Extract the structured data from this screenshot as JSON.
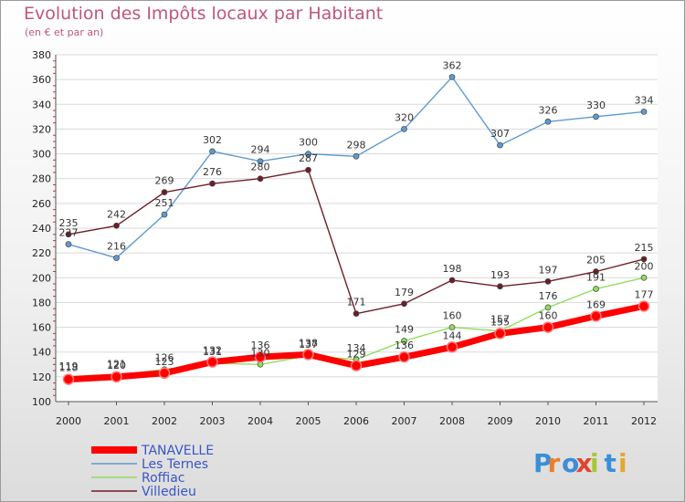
{
  "chart_data": {
    "type": "line",
    "title": "Evolution des Impôts locaux par Habitant",
    "subtitle": "(en € et par an)",
    "xlabel": "",
    "ylabel": "",
    "x": [
      "2000",
      "2001",
      "2002",
      "2003",
      "2004",
      "2005",
      "2006",
      "2007",
      "2008",
      "2009",
      "2010",
      "2011",
      "2012"
    ],
    "ylim": [
      100,
      380
    ],
    "yticks": [
      100,
      120,
      140,
      160,
      180,
      200,
      220,
      240,
      260,
      280,
      300,
      320,
      340,
      360,
      380
    ],
    "grid": "horizontal",
    "legend_position": "bottom-left",
    "series": [
      {
        "name": "TANAVELLE",
        "color": "#ff0000",
        "values": [
          118,
          120,
          123,
          132,
          136,
          138,
          129,
          136,
          144,
          155,
          160,
          169,
          177
        ]
      },
      {
        "name": "Les Ternes",
        "color": "#5e9bd1",
        "values": [
          227,
          216,
          251,
          302,
          294,
          300,
          298,
          320,
          362,
          307,
          326,
          330,
          334
        ]
      },
      {
        "name": "Roffiac",
        "color": "#90dd5e",
        "values": [
          119,
          121,
          126,
          131,
          130,
          137,
          134,
          149,
          160,
          157,
          176,
          191,
          200
        ]
      },
      {
        "name": "Villedieu",
        "color": "#6e1d28",
        "values": [
          235,
          242,
          269,
          276,
          280,
          287,
          171,
          179,
          198,
          193,
          197,
          205,
          215
        ]
      }
    ]
  },
  "brand": {
    "letters": [
      "P",
      "r",
      "o",
      "x",
      "i",
      "t",
      "i"
    ],
    "colors": [
      "#3a8ed8",
      "#e8802a",
      "#3a8ed8",
      "#e0452e",
      "#a6c73a",
      "#3a8ed8",
      "#e8a62a"
    ]
  }
}
